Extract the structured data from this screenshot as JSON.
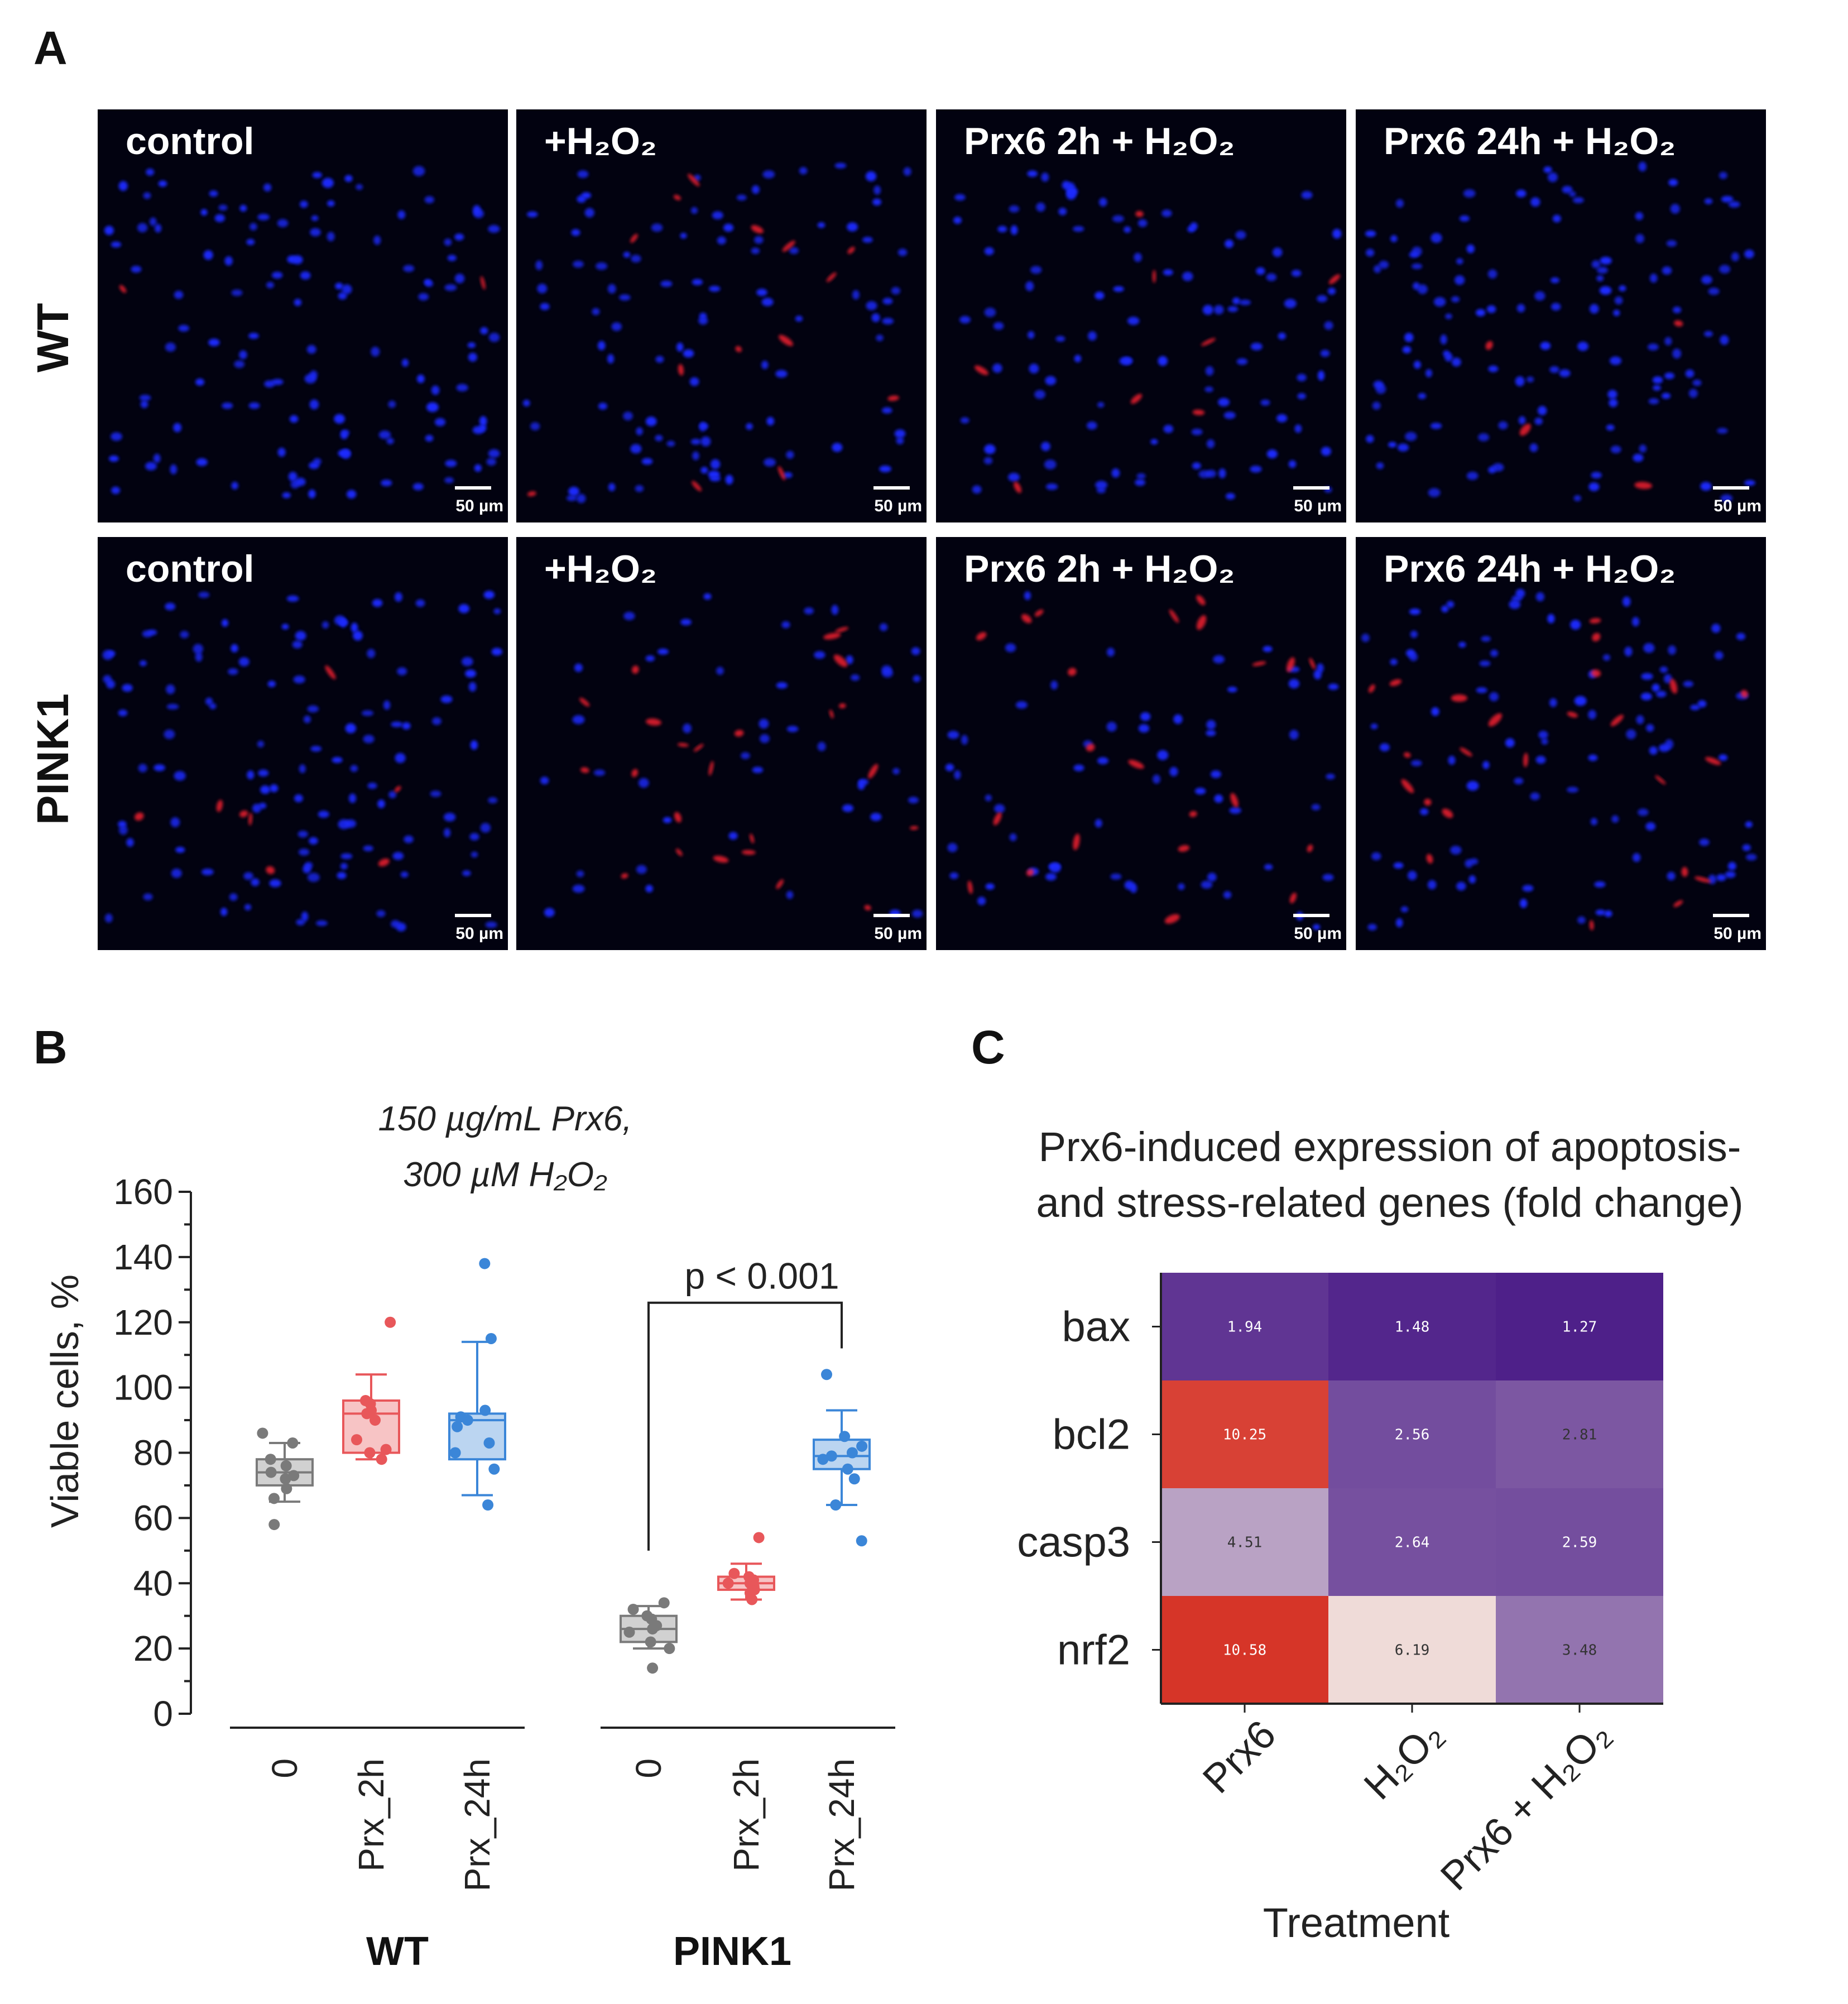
{
  "panel_a": {
    "letter": "A",
    "rows": [
      {
        "label": "WT",
        "panels": [
          {
            "label": "control",
            "scale": "50 µm",
            "red_level": 0.05,
            "density": 0.95
          },
          {
            "label": "+H₂O₂",
            "scale": "50 µm",
            "red_level": 0.35,
            "density": 0.75
          },
          {
            "label": "Prx6 2h + H₂O₂",
            "scale": "50 µm",
            "red_level": 0.2,
            "density": 0.8
          },
          {
            "label": "Prx6 24h + H₂O₂",
            "scale": "50 µm",
            "red_level": 0.1,
            "density": 0.95
          }
        ]
      },
      {
        "label": "PINK1",
        "panels": [
          {
            "label": "control",
            "scale": "50 µm",
            "red_level": 0.2,
            "density": 0.95
          },
          {
            "label": "+H₂O₂",
            "scale": "50 µm",
            "red_level": 0.6,
            "density": 0.35
          },
          {
            "label": "Prx6 2h + H₂O₂",
            "scale": "50 µm",
            "red_level": 0.55,
            "density": 0.45
          },
          {
            "label": "Prx6 24h + H₂O₂",
            "scale": "50 µm",
            "red_level": 0.6,
            "density": 0.75
          }
        ]
      }
    ]
  },
  "chart_data": [
    {
      "type": "box",
      "panel_letter": "B",
      "title_line1": "150 µg/mL Prx6,",
      "title_line2": "300 µM H₂O₂",
      "ylabel": "Viable cells, %",
      "ylim": [
        0,
        160
      ],
      "yticks": [
        0,
        20,
        40,
        60,
        80,
        100,
        120,
        140,
        160
      ],
      "groups": [
        {
          "name": "WT",
          "categories": [
            "0",
            "Prx_2h",
            "Prx_24h"
          ]
        },
        {
          "name": "PINK1",
          "categories": [
            "0",
            "Prx_2h",
            "Prx_24h"
          ]
        }
      ],
      "significance": {
        "text": "p < 0.001",
        "from": [
          1,
          0
        ],
        "to": [
          1,
          2
        ]
      },
      "colors": {
        "0": "#7a7a7a",
        "Prx_2h": "#e8575a",
        "Prx_24h": "#3b86d8"
      },
      "boxes": [
        {
          "group": 0,
          "cat": "0",
          "q1": 70,
          "median": 74,
          "q3": 78,
          "wlo": 65,
          "whi": 83,
          "points": [
            58,
            66,
            69,
            72,
            73,
            74,
            76,
            78,
            83,
            86
          ]
        },
        {
          "group": 0,
          "cat": "Prx_2h",
          "q1": 80,
          "median": 92,
          "q3": 96,
          "wlo": 78,
          "whi": 104,
          "points": [
            78,
            80,
            81,
            84,
            90,
            92,
            93,
            95,
            96,
            120
          ]
        },
        {
          "group": 0,
          "cat": "Prx_24h",
          "q1": 78,
          "median": 90,
          "q3": 92,
          "wlo": 67,
          "whi": 114,
          "points": [
            64,
            75,
            80,
            83,
            88,
            90,
            91,
            93,
            115,
            138
          ]
        },
        {
          "group": 1,
          "cat": "0",
          "q1": 22,
          "median": 26,
          "q3": 30,
          "wlo": 20,
          "whi": 33,
          "points": [
            14,
            20,
            22,
            25,
            26,
            27,
            29,
            30,
            32,
            34
          ]
        },
        {
          "group": 1,
          "cat": "Prx_2h",
          "q1": 38,
          "median": 40,
          "q3": 42,
          "wlo": 35,
          "whi": 46,
          "points": [
            35,
            37,
            38,
            39,
            40,
            40,
            41,
            42,
            43,
            54
          ]
        },
        {
          "group": 1,
          "cat": "Prx_24h",
          "q1": 75,
          "median": 79,
          "q3": 84,
          "wlo": 64,
          "whi": 93,
          "points": [
            53,
            64,
            72,
            75,
            78,
            79,
            80,
            82,
            85,
            104
          ]
        }
      ]
    },
    {
      "type": "heatmap",
      "panel_letter": "C",
      "title_line1": "Prx6-induced expression of apoptosis-",
      "title_line2": "and stress-related genes (fold change)",
      "rows": [
        "bax",
        "bcl2",
        "casp3",
        "nrf2"
      ],
      "cols": [
        "Prx6",
        "H₂O₂",
        "Prx6 + H₂O₂"
      ],
      "xlabel": "Treatment",
      "values": [
        [
          1.94,
          1.48,
          1.27
        ],
        [
          10.25,
          2.56,
          2.81
        ],
        [
          4.51,
          2.64,
          2.59
        ],
        [
          10.58,
          6.19,
          3.48
        ]
      ],
      "color_scale": {
        "low": "#4e2089",
        "mid": "#f1e5e3",
        "high": "#d63528"
      }
    }
  ]
}
